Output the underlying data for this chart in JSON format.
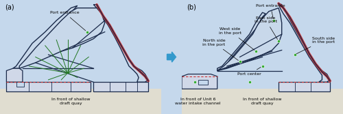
{
  "fig_width": 5.0,
  "fig_height": 1.67,
  "dpi": 100,
  "bg_color": "#c5d8ec",
  "land_color": "#c5d8ec",
  "port_fill": "#c8d8ea",
  "quay_fill": "#d0d8e8",
  "sandy_fill": "#e0ddd0",
  "wall_dark": "#1a2a4a",
  "wall_red": "#cc3333",
  "green_line": "#227722",
  "green_dot": "#33aa33",
  "arrow_blue": "#3399cc",
  "panel_a": "(a)",
  "panel_b": "(b)",
  "label_port_entrance_a": "Port entrance",
  "label_port_entrance_b": "Port entrance",
  "label_east": "East side\nin the port",
  "label_west": "West side\nin the port",
  "label_north": "North side\nin the port",
  "label_south": "South side\nin the port",
  "label_center": "Port center",
  "label_a_bottom": "In front of shallow\ndraft quay",
  "label_b_left": "In front of Unit 6\nwater intake channel",
  "label_b_right": "In front of shallow\ndraft quay",
  "fs": 4.5,
  "fs_panel": 7
}
